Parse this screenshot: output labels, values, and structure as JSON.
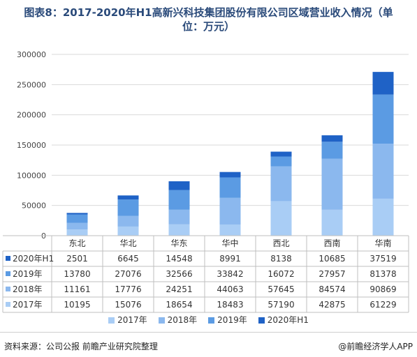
{
  "title_line1": "图表8：2017-2020年H1高新兴科技集团股份有限公司区域营业收入情况（单",
  "title_line2": "位：万元）",
  "source": "资料来源：公司公报 前瞻产业研究院整理",
  "brand": "@前瞻经济学人APP",
  "chart_data": {
    "type": "bar",
    "stacked": true,
    "categories": [
      "东北",
      "华北",
      "华东",
      "华中",
      "西北",
      "西南",
      "华南"
    ],
    "series": [
      {
        "name": "2017年",
        "values": [
          10195,
          15076,
          18654,
          18483,
          57190,
          42875,
          61229
        ],
        "color": "#a9cdf5"
      },
      {
        "name": "2018年",
        "values": [
          11161,
          17776,
          24251,
          44063,
          57645,
          84574,
          90869
        ],
        "color": "#8bb8ee"
      },
      {
        "name": "2019年",
        "values": [
          13780,
          27076,
          32566,
          33842,
          16072,
          27957,
          81378
        ],
        "color": "#5b9be3"
      },
      {
        "name": "2020年H1",
        "values": [
          2501,
          6645,
          14548,
          8991,
          8138,
          10685,
          37519
        ],
        "color": "#1f62c6"
      }
    ],
    "table_order": [
      "2020年H1",
      "2019年",
      "2018年",
      "2017年"
    ],
    "ylim": [
      0,
      300000
    ],
    "yticks": [
      0,
      50000,
      100000,
      150000,
      200000,
      250000,
      300000
    ],
    "grid": true,
    "legend": "bottom"
  }
}
